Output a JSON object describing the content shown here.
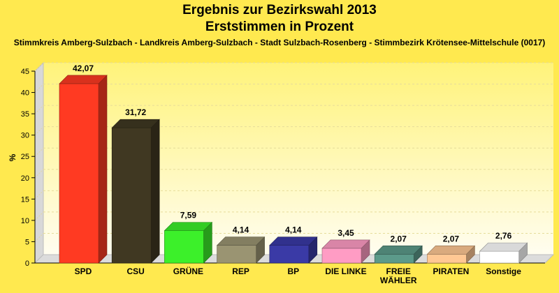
{
  "chart_data": {
    "type": "bar",
    "title": "Ergebnis zur Bezirkswahl 2013",
    "title2": "Erststimmen in Prozent",
    "subtitle": "Stimmkreis Amberg-Sulzbach - Landkreis Amberg-Sulzbach - Stadt Sulzbach-Rosenberg - Stimmbezirk Krötensee-Mittelschule (0017)",
    "ylabel": "%",
    "xlabel": "",
    "ylim": [
      0,
      45
    ],
    "yticks": [
      "0",
      "5",
      "10",
      "15",
      "20",
      "25",
      "30",
      "35",
      "40",
      "45"
    ],
    "grid": true,
    "categories": [
      "SPD",
      "CSU",
      "GRÜNE",
      "REP",
      "BP",
      "DIE LINKE",
      "FREIE WÄHLER",
      "PIRATEN",
      "Sonstige"
    ],
    "category_lines": [
      [
        "SPD"
      ],
      [
        "CSU"
      ],
      [
        "GRÜNE"
      ],
      [
        "REP"
      ],
      [
        "BP"
      ],
      [
        "DIE LINKE"
      ],
      [
        "FREIE",
        "WÄHLER"
      ],
      [
        "PIRATEN"
      ],
      [
        "Sonstige"
      ]
    ],
    "values": [
      42.07,
      31.72,
      7.59,
      4.14,
      4.14,
      3.45,
      2.07,
      2.07,
      2.76
    ],
    "value_labels": [
      "42,07",
      "31,72",
      "7,59",
      "4,14",
      "4,14",
      "3,45",
      "2,07",
      "2,07",
      "2,76"
    ],
    "colors": [
      "#ff3a22",
      "#403822",
      "#3cf02a",
      "#9a9472",
      "#3a3aa6",
      "#ff9cc4",
      "#5c9a8a",
      "#ffc894",
      "#ffffff"
    ]
  }
}
